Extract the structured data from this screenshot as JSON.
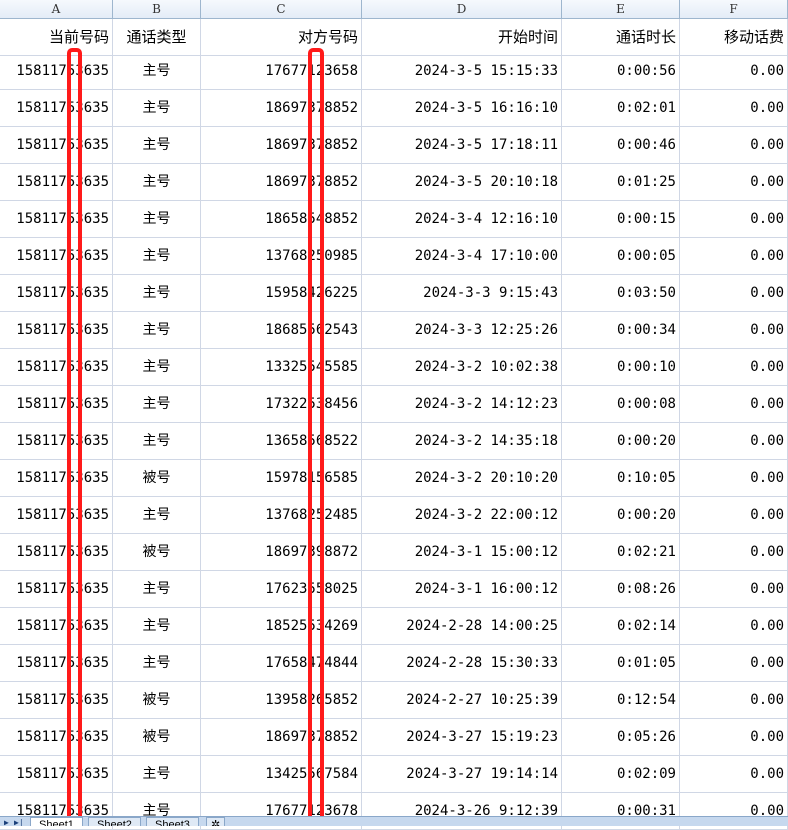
{
  "columns": [
    "A",
    "B",
    "C",
    "D",
    "E",
    "F"
  ],
  "header": [
    "当前号码",
    "通话类型",
    "对方号码",
    "开始时间",
    "通话时长",
    "移动话费"
  ],
  "rows": [
    [
      "15811753635",
      "主号",
      "17677123658",
      "2024-3-5 15:15:33",
      "0:00:56",
      "0.00"
    ],
    [
      "15811753635",
      "主号",
      "18697378852",
      "2024-3-5 16:16:10",
      "0:02:01",
      "0.00"
    ],
    [
      "15811753635",
      "主号",
      "18697378852",
      "2024-3-5 17:18:11",
      "0:00:46",
      "0.00"
    ],
    [
      "15811753635",
      "主号",
      "18697378852",
      "2024-3-5 20:10:18",
      "0:01:25",
      "0.00"
    ],
    [
      "15811753635",
      "主号",
      "18658548852",
      "2024-3-4 12:16:10",
      "0:00:15",
      "0.00"
    ],
    [
      "15811753635",
      "主号",
      "13768250985",
      "2024-3-4 17:10:00",
      "0:00:05",
      "0.00"
    ],
    [
      "15811753635",
      "主号",
      "15958426225",
      "2024-3-3 9:15:43",
      "0:03:50",
      "0.00"
    ],
    [
      "15811753635",
      "主号",
      "18685562543",
      "2024-3-3 12:25:26",
      "0:00:34",
      "0.00"
    ],
    [
      "15811753635",
      "主号",
      "13325545585",
      "2024-3-2 10:02:38",
      "0:00:10",
      "0.00"
    ],
    [
      "15811753635",
      "主号",
      "17322538456",
      "2024-3-2 14:12:23",
      "0:00:08",
      "0.00"
    ],
    [
      "15811753635",
      "主号",
      "13658568522",
      "2024-3-2 14:35:18",
      "0:00:20",
      "0.00"
    ],
    [
      "15811753635",
      "被号",
      "15978156585",
      "2024-3-2 20:10:20",
      "0:10:05",
      "0.00"
    ],
    [
      "15811753635",
      "主号",
      "13768252485",
      "2024-3-2 22:00:12",
      "0:00:20",
      "0.00"
    ],
    [
      "15811753635",
      "被号",
      "18697398872",
      "2024-3-1 15:00:12",
      "0:02:21",
      "0.00"
    ],
    [
      "15811753635",
      "主号",
      "17623558025",
      "2024-3-1 16:00:12",
      "0:08:26",
      "0.00"
    ],
    [
      "15811753635",
      "主号",
      "18525534269",
      "2024-2-28 14:00:25",
      "0:02:14",
      "0.00"
    ],
    [
      "15811753635",
      "主号",
      "17658474844",
      "2024-2-28 15:30:33",
      "0:01:05",
      "0.00"
    ],
    [
      "15811753635",
      "被号",
      "13958265852",
      "2024-2-27 10:25:39",
      "0:12:54",
      "0.00"
    ],
    [
      "15811753635",
      "被号",
      "18697378852",
      "2024-3-27 15:19:23",
      "0:05:26",
      "0.00"
    ],
    [
      "15811753635",
      "主号",
      "13425567584",
      "2024-3-27 19:14:14",
      "0:02:09",
      "0.00"
    ],
    [
      "15811753635",
      "主号",
      "17677123678",
      "2024-3-26 9:12:39",
      "0:00:31",
      "0.00"
    ]
  ],
  "sheet_tabs": [
    "Sheet1",
    "Sheet2",
    "Sheet3"
  ],
  "active_sheet": "Sheet1",
  "redaction_color": "#ff1a1a"
}
